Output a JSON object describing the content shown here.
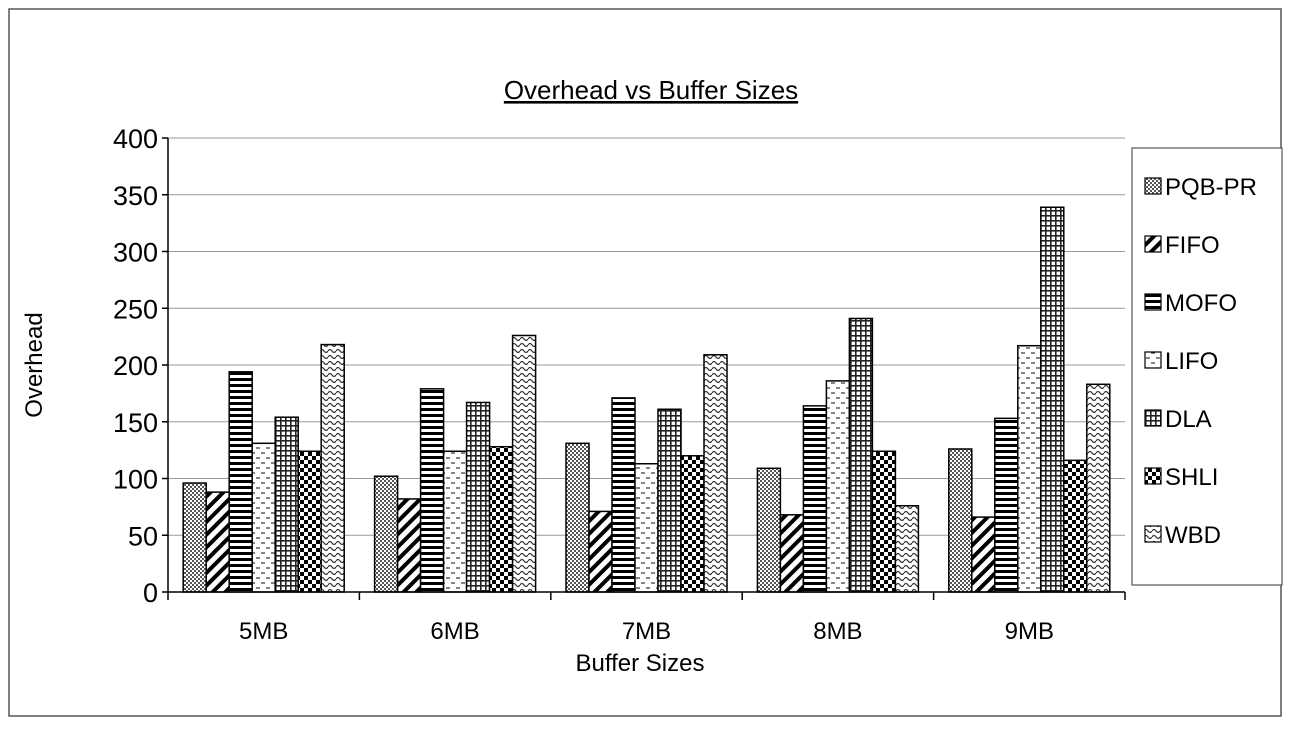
{
  "chart_data": {
    "type": "bar",
    "title": "Overhead vs Buffer Sizes",
    "xlabel": "Buffer Sizes",
    "ylabel": "Overhead",
    "ylim": [
      0,
      400
    ],
    "yticks": [
      0,
      50,
      100,
      150,
      200,
      250,
      300,
      350,
      400
    ],
    "grid": true,
    "legend_position": "right",
    "categories": [
      "5MB",
      "6MB",
      "7MB",
      "8MB",
      "9MB"
    ],
    "series": [
      {
        "name": "PQB-PR",
        "pattern": "dots",
        "values": [
          96,
          102,
          131,
          109,
          126
        ]
      },
      {
        "name": "FIFO",
        "pattern": "diagonal",
        "values": [
          88,
          82,
          71,
          68,
          66
        ]
      },
      {
        "name": "MOFO",
        "pattern": "horizontal",
        "values": [
          194,
          179,
          171,
          164,
          153
        ]
      },
      {
        "name": "LIFO",
        "pattern": "dashes",
        "values": [
          131,
          124,
          113,
          186,
          217
        ]
      },
      {
        "name": "DLA",
        "pattern": "grid",
        "values": [
          154,
          167,
          161,
          241,
          339
        ]
      },
      {
        "name": "SHLI",
        "pattern": "checker",
        "values": [
          124,
          128,
          120,
          124,
          116
        ]
      },
      {
        "name": "WBD",
        "pattern": "wave",
        "values": [
          218,
          226,
          209,
          76,
          183
        ]
      }
    ]
  }
}
